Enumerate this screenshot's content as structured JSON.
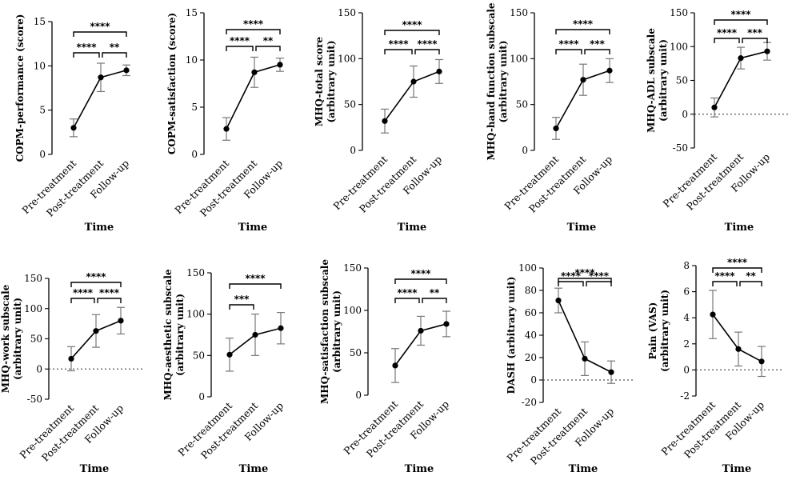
{
  "chart_data": [
    {
      "type": "line",
      "ylabel": [
        "COPM-performance (score)"
      ],
      "xlabel": "Time",
      "categories": [
        "Pre-treatment",
        "Post-treatment",
        "Follow-up"
      ],
      "ylim": [
        0,
        15
      ],
      "yticks": [
        0,
        5,
        10,
        15
      ],
      "values": [
        3.0,
        8.7,
        9.5
      ],
      "errors": [
        1.0,
        1.6,
        0.6
      ],
      "zero_dotted": false,
      "significance": [
        {
          "from": 0,
          "to": 2,
          "label": "****"
        },
        {
          "from": 0,
          "to": 1,
          "label": "****"
        },
        {
          "from": 1,
          "to": 2,
          "label": "**"
        }
      ]
    },
    {
      "type": "line",
      "ylabel": [
        "COPM-satisfaction (score)"
      ],
      "xlabel": "Time",
      "categories": [
        "Pre-treatment",
        "Post-treatment",
        "Follow-up"
      ],
      "ylim": [
        0,
        15
      ],
      "yticks": [
        0,
        5,
        10,
        15
      ],
      "values": [
        2.7,
        8.7,
        9.5
      ],
      "errors": [
        1.2,
        1.6,
        0.7
      ],
      "zero_dotted": false,
      "significance": [
        {
          "from": 0,
          "to": 2,
          "label": "****"
        },
        {
          "from": 0,
          "to": 1,
          "label": "****"
        },
        {
          "from": 1,
          "to": 2,
          "label": "**"
        }
      ]
    },
    {
      "type": "line",
      "ylabel": [
        "MHQ-total score",
        "(arbitrary unit)"
      ],
      "xlabel": "Time",
      "categories": [
        "Pre-treatment",
        "Post-treatment",
        "Follow-up"
      ],
      "ylim": [
        0,
        150
      ],
      "yticks": [
        0,
        50,
        100,
        150
      ],
      "values": [
        32,
        75,
        86
      ],
      "errors": [
        13,
        17,
        13
      ],
      "zero_dotted": false,
      "significance": [
        {
          "from": 0,
          "to": 2,
          "label": "****"
        },
        {
          "from": 0,
          "to": 1,
          "label": "****"
        },
        {
          "from": 1,
          "to": 2,
          "label": "****"
        }
      ]
    },
    {
      "type": "line",
      "ylabel": [
        "MHQ-hand function subscale",
        "(arbitrary unit)"
      ],
      "xlabel": "Time",
      "categories": [
        "Pre-treatment",
        "Post-treatment",
        "Follow-up"
      ],
      "ylim": [
        0,
        150
      ],
      "yticks": [
        0,
        50,
        100,
        150
      ],
      "values": [
        24,
        77,
        87
      ],
      "errors": [
        12,
        17,
        13
      ],
      "zero_dotted": false,
      "significance": [
        {
          "from": 0,
          "to": 2,
          "label": "****"
        },
        {
          "from": 0,
          "to": 1,
          "label": "****"
        },
        {
          "from": 1,
          "to": 2,
          "label": "***"
        }
      ]
    },
    {
      "type": "line",
      "ylabel": [
        "MHQ-ADL subscale",
        "(arbitrary unit)"
      ],
      "xlabel": "Time",
      "categories": [
        "Pre-treatment",
        "Post-treatment",
        "Follow-up"
      ],
      "ylim": [
        -50,
        150
      ],
      "yticks": [
        -50,
        0,
        50,
        100,
        150
      ],
      "values": [
        10,
        83,
        93
      ],
      "errors": [
        14,
        16,
        13
      ],
      "zero_dotted": true,
      "significance": [
        {
          "from": 0,
          "to": 2,
          "label": "****"
        },
        {
          "from": 0,
          "to": 1,
          "label": "****"
        },
        {
          "from": 1,
          "to": 2,
          "label": "***"
        }
      ]
    },
    {
      "type": "line",
      "ylabel": [
        "MHQ-work subscale",
        "(arbitrary unit)"
      ],
      "xlabel": "Time",
      "categories": [
        "Pre-treatment",
        "Post-treatment",
        "Follow-up"
      ],
      "ylim": [
        -50,
        150
      ],
      "yticks": [
        -50,
        0,
        50,
        100,
        150
      ],
      "values": [
        17,
        63,
        80
      ],
      "errors": [
        20,
        27,
        22
      ],
      "zero_dotted": true,
      "significance": [
        {
          "from": 0,
          "to": 2,
          "label": "****"
        },
        {
          "from": 0,
          "to": 1,
          "label": "****"
        },
        {
          "from": 1,
          "to": 2,
          "label": "****"
        }
      ]
    },
    {
      "type": "line",
      "ylabel": [
        "MHQ-aesthetic subscale",
        "(arbitrary unit)"
      ],
      "xlabel": "Time",
      "categories": [
        "Pre-treatment",
        "Post-treatment",
        "Follow-up"
      ],
      "ylim": [
        0,
        150
      ],
      "yticks": [
        0,
        50,
        100,
        150
      ],
      "values": [
        51,
        75,
        83
      ],
      "errors": [
        20,
        25,
        19
      ],
      "zero_dotted": false,
      "significance": [
        {
          "from": 0,
          "to": 2,
          "label": "****"
        },
        {
          "from": 0,
          "to": 1,
          "label": "***"
        }
      ]
    },
    {
      "type": "line",
      "ylabel": [
        "MHQ-satisfaction subscale",
        "(arbitrary unit)"
      ],
      "xlabel": "Time",
      "categories": [
        "Pre-treatment",
        "Post-treatment",
        "Follow-up"
      ],
      "ylim": [
        0,
        150
      ],
      "yticks": [
        0,
        50,
        100,
        150
      ],
      "values": [
        35,
        76,
        84
      ],
      "errors": [
        20,
        17,
        15
      ],
      "zero_dotted": false,
      "significance": [
        {
          "from": 0,
          "to": 2,
          "label": "****"
        },
        {
          "from": 0,
          "to": 1,
          "label": "****"
        },
        {
          "from": 1,
          "to": 2,
          "label": "**"
        }
      ]
    },
    {
      "type": "line",
      "ylabel": [
        "DASH (arbitrary unit)"
      ],
      "xlabel": "Time",
      "categories": [
        "Pre-treatment",
        "Post-treatment",
        "Follow-up"
      ],
      "ylim": [
        -20,
        100
      ],
      "yticks": [
        -20,
        0,
        20,
        40,
        60,
        80,
        100
      ],
      "values": [
        71,
        19,
        7
      ],
      "errors": [
        11,
        15,
        10
      ],
      "zero_dotted": true,
      "significance": [
        {
          "from": 0,
          "to": 2,
          "label": "****"
        },
        {
          "from": 0,
          "to": 1,
          "label": "****"
        },
        {
          "from": 1,
          "to": 2,
          "label": "****"
        }
      ]
    },
    {
      "type": "line",
      "ylabel": [
        "Pain (VAS)",
        "(arbitrary unit)"
      ],
      "xlabel": "Time",
      "categories": [
        "Pre-treatment",
        "Post-treatment",
        "Follow-up"
      ],
      "ylim": [
        -2,
        8
      ],
      "yticks": [
        -2,
        0,
        2,
        4,
        6,
        8
      ],
      "values": [
        4.25,
        1.6,
        0.65
      ],
      "errors": [
        1.85,
        1.3,
        1.15
      ],
      "zero_dotted": true,
      "significance": [
        {
          "from": 0,
          "to": 2,
          "label": "****"
        },
        {
          "from": 0,
          "to": 1,
          "label": "****"
        },
        {
          "from": 1,
          "to": 2,
          "label": "**"
        }
      ]
    }
  ]
}
